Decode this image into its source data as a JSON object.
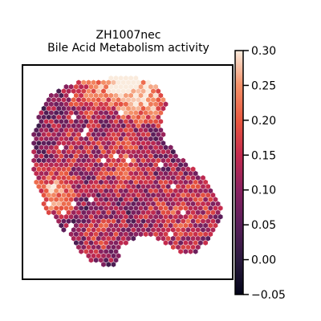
{
  "chart_data": {
    "type": "heatmap",
    "title_line1": "ZH1007nec",
    "title_line2": "Bile Acid Metabolism activity",
    "colorbar": {
      "min": -0.05,
      "max": 0.3,
      "ticks": [
        "0.30",
        "0.25",
        "0.20",
        "0.15",
        "0.10",
        "0.05",
        "0.00",
        "−0.05"
      ],
      "colormap": "rocket"
    },
    "spot_shape": "hexagon",
    "notes_visible": "spatial hex-spot map, colour encodes activity score",
    "grid": false,
    "legend": "colorbar-right"
  }
}
